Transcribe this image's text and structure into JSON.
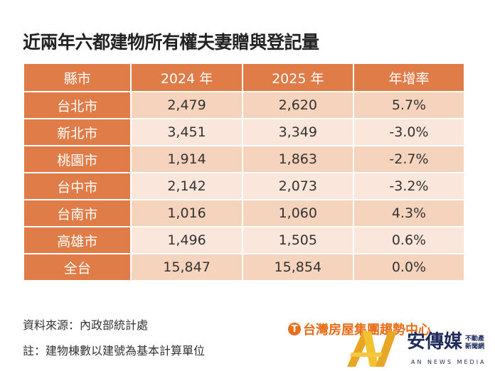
{
  "title": "近兩年六都建物所有權夫妻贈與登記量",
  "table": {
    "headers": [
      "縣市",
      "2024 年",
      "2025 年",
      "年增率"
    ],
    "rows": [
      [
        "台北市",
        "2,479",
        "2,620",
        "5.7%"
      ],
      [
        "新北市",
        "3,451",
        "3,349",
        "-3.0%"
      ],
      [
        "桃園市",
        "1,914",
        "1,863",
        "-2.7%"
      ],
      [
        "台中市",
        "2,142",
        "2,073",
        "-3.2%"
      ],
      [
        "台南市",
        "1,016",
        "1,060",
        "4.3%"
      ],
      [
        "高雄市",
        "1,496",
        "1,505",
        "0.6%"
      ],
      [
        "全台",
        "15,847",
        "15,854",
        "0.0%"
      ]
    ]
  },
  "source": "資料來源：內政部統計處",
  "note": "註：建物棟數以建號為基本計算單位",
  "logo_taiwan": "台灣房屋集團趨勢中心",
  "logo_an": {
    "name": "安傳媒",
    "sub1": "不動產",
    "sub2": "新聞網",
    "en": "AN NEWS MEDIA"
  },
  "colors": {
    "header": "#e07c47",
    "row_dark": "#f6d3bd",
    "row_light": "#fae6da"
  }
}
